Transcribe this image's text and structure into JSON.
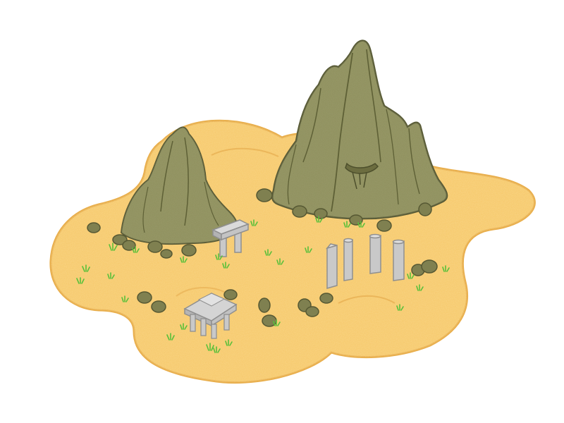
{
  "scene": {
    "kind": "isometric desert island with mountains and ruins",
    "colors": {
      "background": "#ffffff",
      "sand": "#f6c766",
      "sand_edge": "#e9b04e",
      "sand_highlight": "#fbd98a",
      "mountain": "#8c8d59",
      "mountain_dark": "#6c6d40",
      "mountain_outline": "#565833",
      "rock": "#7f8050",
      "stone": "#c9c9c9",
      "stone_dark": "#9a9a9a",
      "grass": "#58c03a"
    },
    "objects": [
      {
        "name": "left-mountain-icon",
        "interactable": true
      },
      {
        "name": "large-mountain-icon",
        "interactable": true
      },
      {
        "name": "cave-entrance-icon",
        "interactable": true
      },
      {
        "name": "stone-arch-icon",
        "interactable": true
      },
      {
        "name": "stone-pillars-icon",
        "interactable": true
      },
      {
        "name": "small-temple-icon",
        "interactable": true
      }
    ]
  }
}
